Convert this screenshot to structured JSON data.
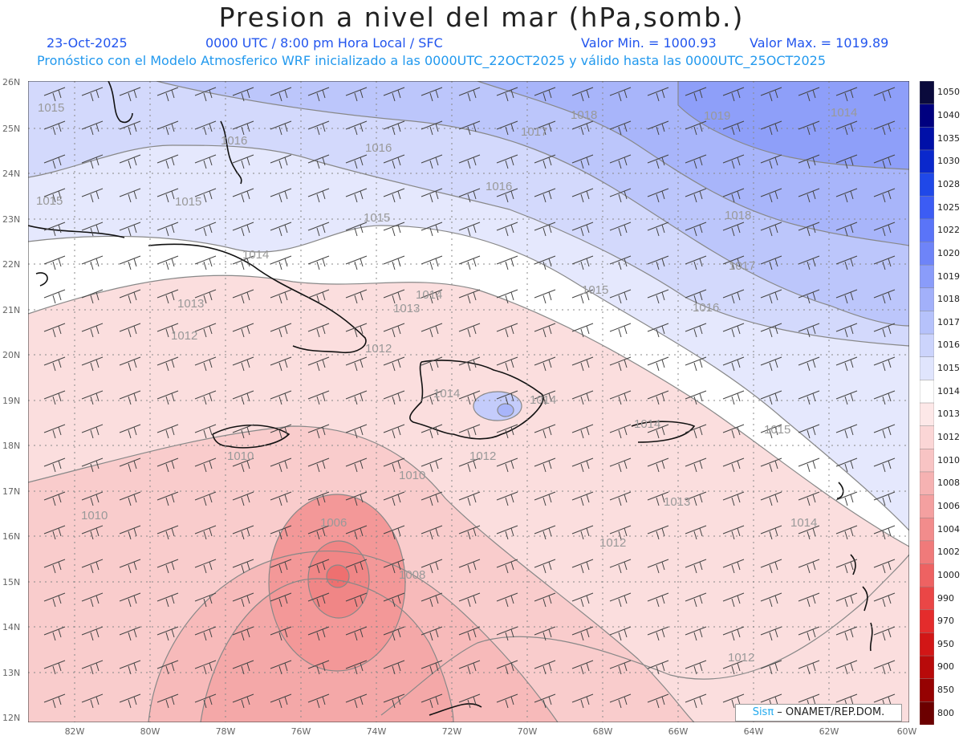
{
  "header": {
    "title": "Presion a nivel del mar (hPa,somb.)",
    "date": "23-Oct-2025",
    "time": "0000 UTC / 8:00 pm Hora Local / SFC",
    "min_label": "Valor Min. = 1000.93",
    "max_label": "Valor Max. = 1019.89",
    "model_line": "Pronóstico con el Modelo Atmosferico WRF inicializado a las 0000UTC_22OCT2025 y válido hasta las  0000UTC_25OCT2025"
  },
  "axes": {
    "lat_labels": [
      "26N",
      "25N",
      "24N",
      "23N",
      "22N",
      "21N",
      "20N",
      "19N",
      "18N",
      "17N",
      "16N",
      "15N",
      "14N",
      "13N",
      "12N"
    ],
    "lon_labels": [
      "82W",
      "80W",
      "78W",
      "76W",
      "74W",
      "72W",
      "70W",
      "68W",
      "66W",
      "64W",
      "62W",
      "60W"
    ]
  },
  "colorbar": {
    "labels": [
      "1050",
      "1040",
      "1035",
      "1030",
      "1028",
      "1025",
      "1022",
      "1020",
      "1019",
      "1018",
      "1017",
      "1016",
      "1015",
      "1014",
      "1013",
      "1012",
      "1010",
      "1008",
      "1006",
      "1004",
      "1002",
      "1000",
      "990",
      "970",
      "950",
      "900",
      "850",
      "800"
    ],
    "colors": [
      "#0a0a3c",
      "#00007f",
      "#0010a8",
      "#0a28cc",
      "#1f48e8",
      "#3c5cf4",
      "#5a74f8",
      "#6e84f8",
      "#8a9cfa",
      "#a2b0fa",
      "#b6c2fb",
      "#ccd4fc",
      "#e0e5fd",
      "#ffffff",
      "#fde8e8",
      "#fbd6d6",
      "#f8c4c4",
      "#f6b2b2",
      "#f4a0a0",
      "#f28c8c",
      "#f07a7a",
      "#ee6262",
      "#ea4646",
      "#e42c2c",
      "#d21616",
      "#b80a0a",
      "#960202",
      "#6c0000"
    ]
  },
  "contour_labels": [
    {
      "text": "1018"
    },
    {
      "text": "1019"
    },
    {
      "text": "1017"
    },
    {
      "text": "1016"
    },
    {
      "text": "1016"
    },
    {
      "text": "1016"
    },
    {
      "text": "1015"
    },
    {
      "text": "1015"
    },
    {
      "text": "1015"
    },
    {
      "text": "1018"
    },
    {
      "text": "1017"
    },
    {
      "text": "1014"
    },
    {
      "text": "1015"
    },
    {
      "text": "1016"
    },
    {
      "text": "1013"
    },
    {
      "text": "1014"
    },
    {
      "text": "1013"
    },
    {
      "text": "1012"
    },
    {
      "text": "1012"
    },
    {
      "text": "1014"
    },
    {
      "text": "1014"
    },
    {
      "text": "1014"
    },
    {
      "text": "1015"
    },
    {
      "text": "1012"
    },
    {
      "text": "1010"
    },
    {
      "text": "1010"
    },
    {
      "text": "1010"
    },
    {
      "text": "1013"
    },
    {
      "text": "1006"
    },
    {
      "text": "1014"
    },
    {
      "text": "1008"
    },
    {
      "text": "1012"
    },
    {
      "text": "1012"
    },
    {
      "text": "1015"
    },
    {
      "text": "1014"
    }
  ],
  "credit": {
    "brand": "Sisπ",
    "rest": " – ONAMET/REP.DOM."
  }
}
